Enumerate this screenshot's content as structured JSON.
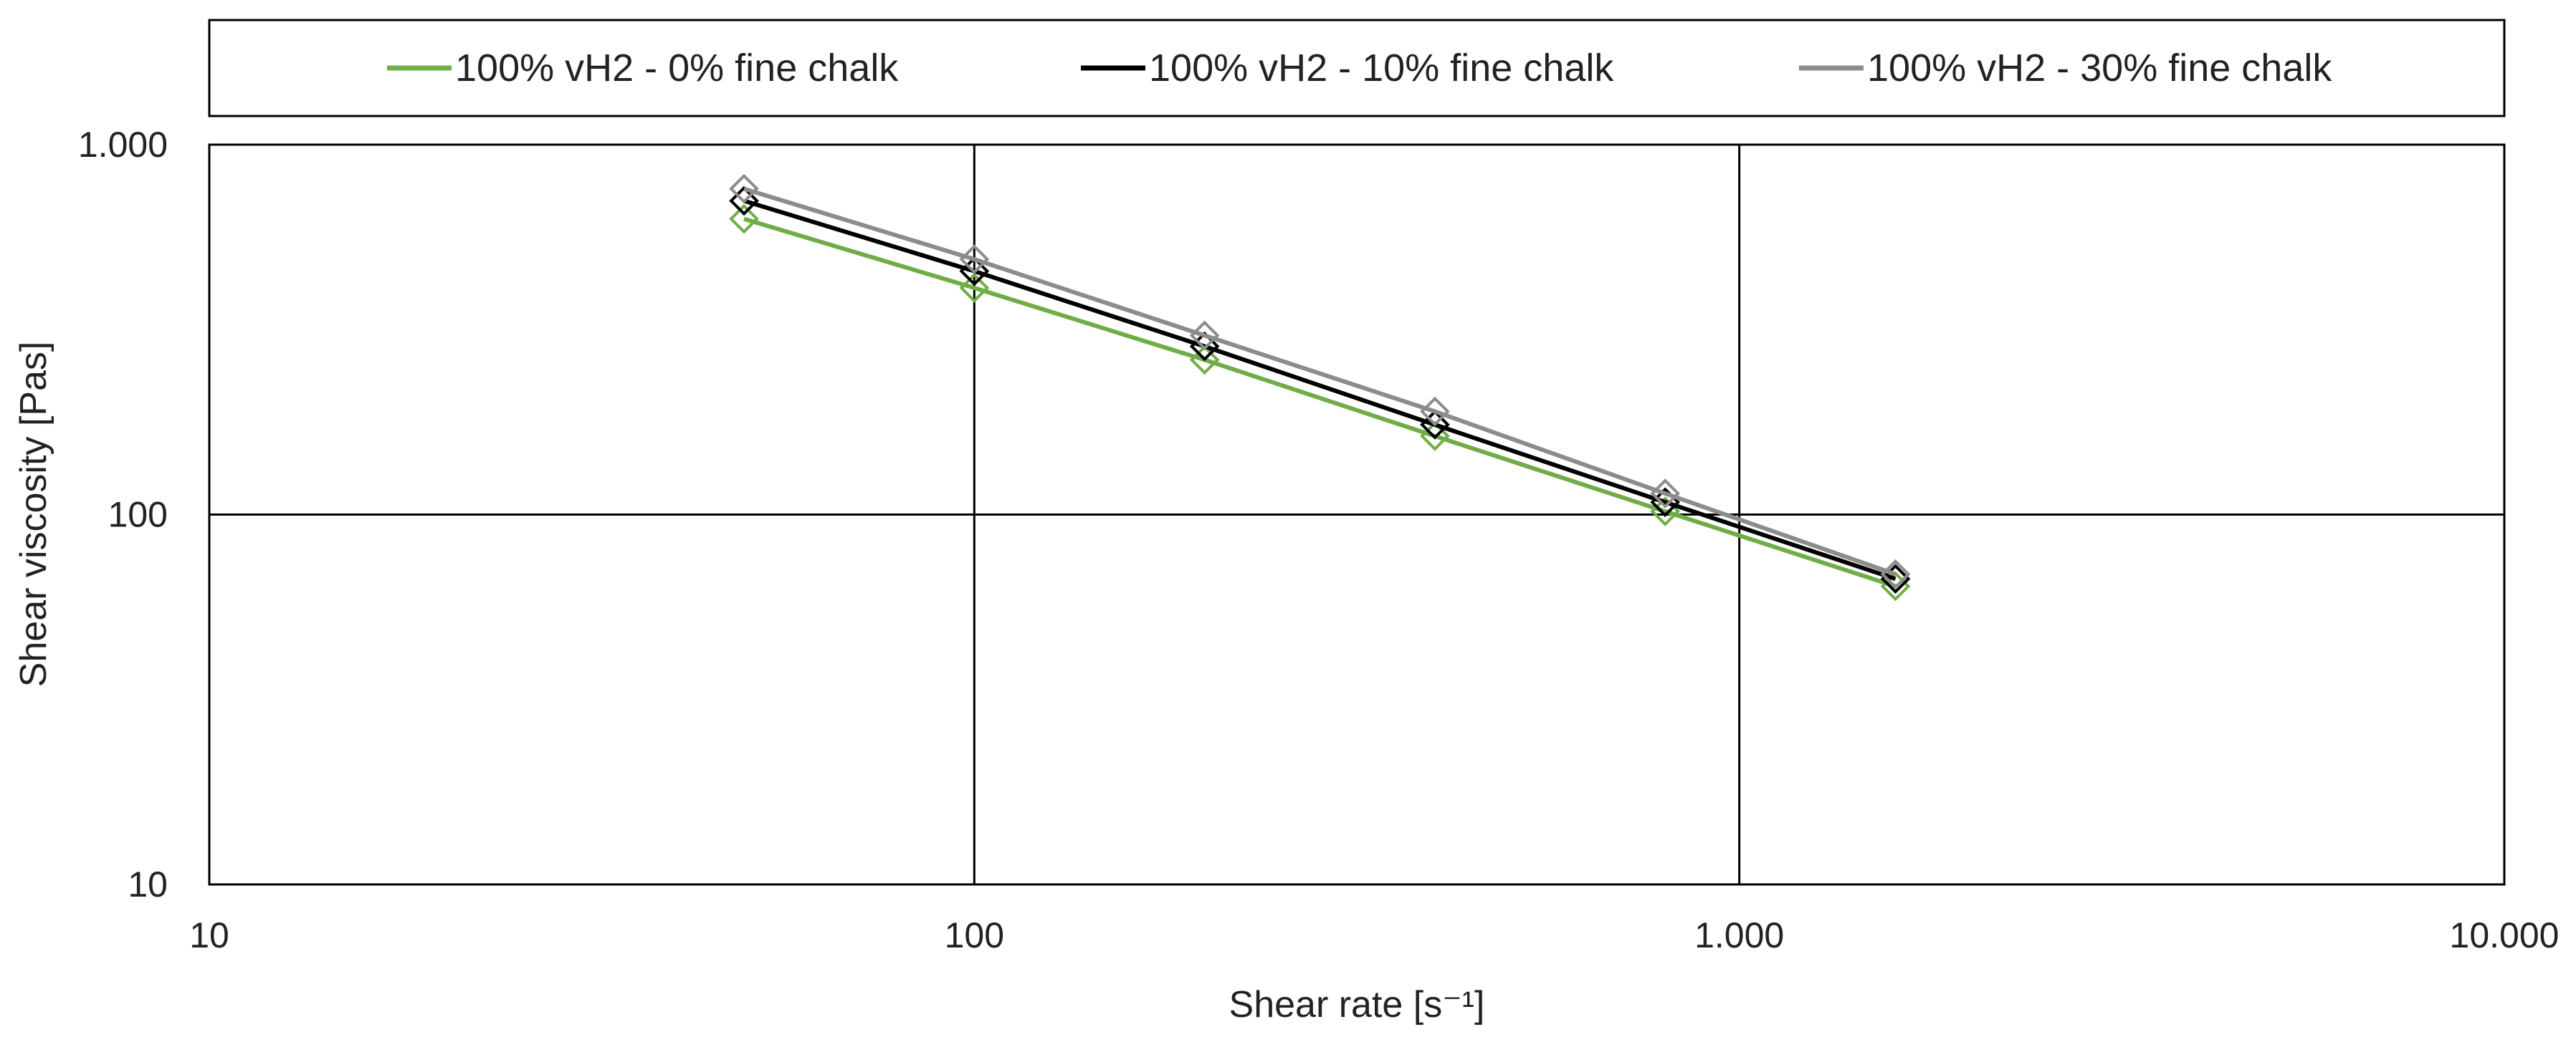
{
  "chart_data": {
    "type": "line",
    "title": "",
    "xlabel": "Shear rate   [s⁻¹]",
    "ylabel": "Shear viscosity   [Pas]",
    "x_scale": "log",
    "y_scale": "log",
    "xlim": [
      10,
      10000
    ],
    "ylim": [
      10,
      1000
    ],
    "x_ticks": [
      {
        "value": 10,
        "label": "10"
      },
      {
        "value": 100,
        "label": "100"
      },
      {
        "value": 1000,
        "label": "1.000"
      },
      {
        "value": 10000,
        "label": "10.000"
      }
    ],
    "y_ticks": [
      {
        "value": 10,
        "label": "10"
      },
      {
        "value": 100,
        "label": "100"
      },
      {
        "value": 1000,
        "label": "1.000"
      }
    ],
    "grid": true,
    "legend_position": "top",
    "marker": "diamond",
    "series": [
      {
        "name": "100% vH2 - 0% fine chalk",
        "color": "#70ad47",
        "x": [
          50,
          100,
          200,
          400,
          800,
          1600
        ],
        "y": [
          630,
          410,
          262,
          163,
          102,
          64
        ]
      },
      {
        "name": "100% vH2 - 10% fine chalk",
        "color": "#000000",
        "x": [
          50,
          100,
          200,
          400,
          800,
          1600
        ],
        "y": [
          705,
          455,
          285,
          175,
          108,
          67
        ]
      },
      {
        "name": "100% vH2 - 30% fine chalk",
        "color": "#8c8c8c",
        "x": [
          50,
          100,
          200,
          400,
          800,
          1600
        ],
        "y": [
          760,
          490,
          305,
          190,
          114,
          69
        ]
      }
    ]
  }
}
